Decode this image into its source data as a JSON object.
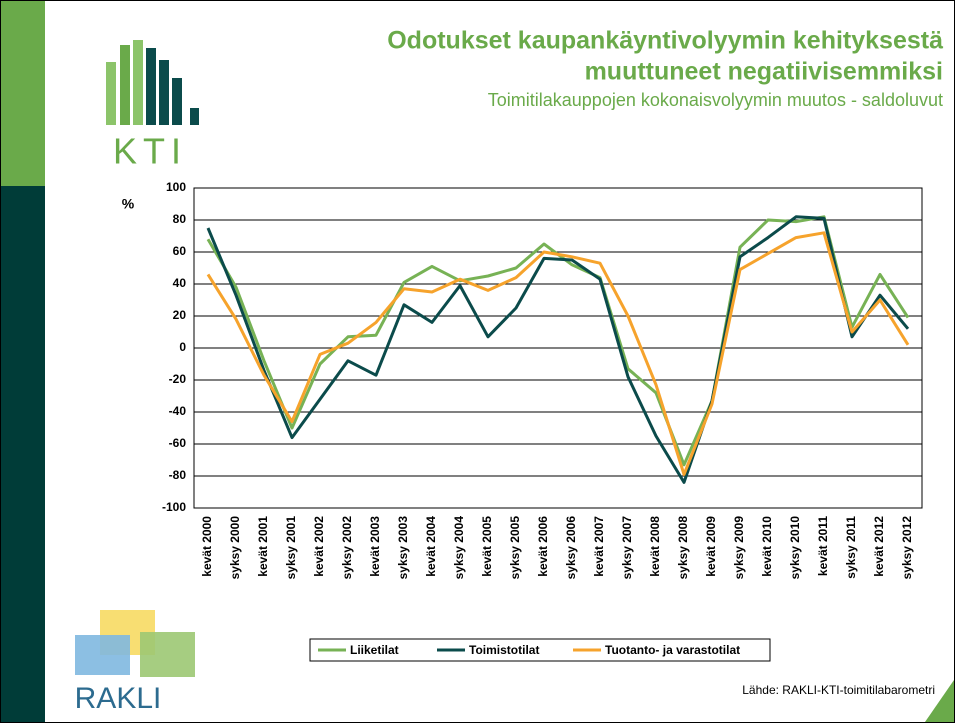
{
  "kti_logo": "KTI",
  "rakli_logo": "RAKLI",
  "chart_data": {
    "type": "line",
    "title_line1": "Odotukset kaupankäyntivolyymin kehityksestä",
    "title_line2": "muuttuneet negatiivisemmiksi",
    "subtitle": "Toimitilakauppojen kokonaisvolyymin muutos - saldoluvut",
    "y_label": "%",
    "source": "Lähde: RAKLI-KTI-toimitilabarometri",
    "categories": [
      "kevät 2000",
      "syksy 2000",
      "kevät 2001",
      "syksy 2001",
      "kevät 2002",
      "syksy 2002",
      "kevät 2003",
      "syksy 2003",
      "kevät 2004",
      "syksy 2004",
      "kevät 2005",
      "syksy 2005",
      "kevät 2006",
      "syksy 2006",
      "kevät 2007",
      "syksy 2007",
      "kevät 2008",
      "syksy 2008",
      "kevät 2009",
      "syksy 2009",
      "kevät 2010",
      "syksy 2010",
      "kevät 2011",
      "syksy 2011",
      "kevät 2012",
      "syksy 2012"
    ],
    "series": [
      {
        "name": "Liiketilat",
        "color": "#77b255",
        "values": [
          68,
          38,
          -8,
          -50,
          -10,
          7,
          8,
          41,
          51,
          42,
          45,
          50,
          65,
          52,
          44,
          -13,
          -28,
          -73,
          -33,
          63,
          80,
          79,
          82,
          13,
          46,
          19
        ]
      },
      {
        "name": "Toimistotilat",
        "color": "#0b4b4b",
        "values": [
          75,
          33,
          -14,
          -56,
          -32,
          -8,
          -17,
          27,
          16,
          39,
          7,
          25,
          56,
          55,
          43,
          -18,
          -55,
          -84,
          -33,
          57,
          69,
          82,
          81,
          7,
          33,
          12
        ]
      },
      {
        "name": "Tuotanto- ja varastotilat",
        "color": "#f6a32c",
        "values": [
          46,
          18,
          -17,
          -46,
          -4,
          3,
          16,
          37,
          35,
          43,
          36,
          44,
          60,
          57,
          53,
          20,
          -23,
          -79,
          -35,
          49,
          59,
          69,
          72,
          10,
          30,
          2
        ]
      }
    ],
    "ylim": [
      -100,
      100
    ],
    "yticks": [
      -100,
      -80,
      -60,
      -40,
      -20,
      0,
      20,
      40,
      60,
      80,
      100
    ],
    "grid": true
  }
}
